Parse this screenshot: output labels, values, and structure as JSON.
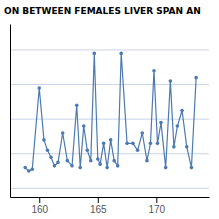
{
  "chart_data": {
    "type": "line",
    "title": "ON BETWEEN FEMALES LIVER SPAN AN",
    "x": [
      158.8,
      159.1,
      159.4,
      160.0,
      160.4,
      160.7,
      161.0,
      161.3,
      161.6,
      162.0,
      162.4,
      162.8,
      163.2,
      163.5,
      163.8,
      164.1,
      164.4,
      164.7,
      165.0,
      165.2,
      165.5,
      165.8,
      166.1,
      166.4,
      166.7,
      167.0,
      167.5,
      168.0,
      168.4,
      168.8,
      169.2,
      169.5,
      169.8,
      170.1,
      170.4,
      170.8,
      171.2,
      171.5,
      171.8,
      172.2,
      172.6,
      173.0,
      173.4
    ],
    "values": [
      9.2,
      9.0,
      9.1,
      13.8,
      10.8,
      10.2,
      9.8,
      9.3,
      9.5,
      11.2,
      9.6,
      9.3,
      12.8,
      9.2,
      11.6,
      10.2,
      9.6,
      15.8,
      9.7,
      9.4,
      10.6,
      9.2,
      10.8,
      9.6,
      9.3,
      15.8,
      10.6,
      10.6,
      10.2,
      11.2,
      9.6,
      10.6,
      14.8,
      10.6,
      11.8,
      9.2,
      14.2,
      10.4,
      11.6,
      12.5,
      10.4,
      9.2,
      14.4
    ],
    "color": "#4C7AB0",
    "marker": "circle",
    "xlim": [
      157.5,
      174.5
    ],
    "ylim": [
      7.5,
      17.5
    ],
    "xticks": [
      160,
      165,
      170
    ],
    "yticks": [
      8,
      10,
      12,
      14,
      16
    ],
    "grid": true,
    "tick_labels": "x"
  }
}
